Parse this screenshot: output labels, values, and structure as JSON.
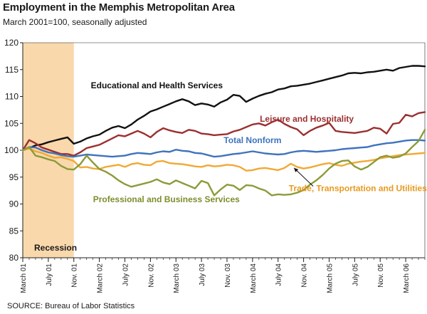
{
  "chart_data": {
    "type": "line",
    "title": "Employment in the Memphis Metropolitan Area",
    "subtitle": "March 2001=100, seasonally adjusted",
    "source": "SOURCE: Bureau of Labor Statistics",
    "ylim": [
      80,
      120
    ],
    "yticks": [
      80,
      85,
      90,
      95,
      100,
      105,
      110,
      115,
      120
    ],
    "x_range_months": [
      0,
      63
    ],
    "xticks": [
      {
        "m": 0,
        "label": "March 01"
      },
      {
        "m": 4,
        "label": "July 01"
      },
      {
        "m": 8,
        "label": "Nov. 01"
      },
      {
        "m": 12,
        "label": "March 02"
      },
      {
        "m": 16,
        "label": "July 02"
      },
      {
        "m": 20,
        "label": "Nov. 02"
      },
      {
        "m": 24,
        "label": "March 03"
      },
      {
        "m": 28,
        "label": "July 03"
      },
      {
        "m": 32,
        "label": "Nov. 03"
      },
      {
        "m": 36,
        "label": "March 04"
      },
      {
        "m": 40,
        "label": "July 04"
      },
      {
        "m": 44,
        "label": "Nov. 04"
      },
      {
        "m": 48,
        "label": "March 05"
      },
      {
        "m": 52,
        "label": "July 05"
      },
      {
        "m": 56,
        "label": "Nov. 05"
      },
      {
        "m": 60,
        "label": "March 06"
      }
    ],
    "recession": {
      "start": 0,
      "end": 8,
      "label": "Recession",
      "color": "#f9d8ac"
    },
    "series": [
      {
        "name": "Educational and Health Services",
        "color": "#111111",
        "values": [
          100,
          100.4,
          100.9,
          101.1,
          101.5,
          101.8,
          102.1,
          102.4,
          101.2,
          101.6,
          102.2,
          102.6,
          102.9,
          103.6,
          104.2,
          104.5,
          104.1,
          104.8,
          105.7,
          106.4,
          107.2,
          107.6,
          108.1,
          108.6,
          109.1,
          109.5,
          109.1,
          108.4,
          108.7,
          108.5,
          108.1,
          108.9,
          109.4,
          110.3,
          110.1,
          109.0,
          109.6,
          110.1,
          110.5,
          110.8,
          111.3,
          111.5,
          111.9,
          112.0,
          112.2,
          112.4,
          112.7,
          113.0,
          113.3,
          113.6,
          113.9,
          114.3,
          114.4,
          114.3,
          114.5,
          114.6,
          114.8,
          115.0,
          114.8,
          115.3,
          115.5,
          115.7,
          115.7,
          115.6
        ]
      },
      {
        "name": "Leisure and Hospitality",
        "color": "#9b2f2f",
        "values": [
          100,
          101.9,
          101.3,
          100.5,
          100.1,
          99.7,
          99.3,
          99.3,
          99.0,
          99.6,
          100.4,
          100.7,
          101.0,
          101.6,
          102.2,
          102.8,
          102.6,
          103.1,
          103.6,
          103.1,
          102.4,
          103.4,
          104.1,
          103.7,
          103.4,
          103.2,
          103.8,
          103.6,
          103.1,
          103.0,
          102.8,
          102.9,
          103.0,
          103.5,
          103.8,
          104.3,
          104.8,
          105.0,
          104.6,
          105.2,
          105.7,
          104.9,
          104.3,
          103.9,
          102.8,
          103.6,
          104.2,
          104.6,
          105.1,
          103.6,
          103.4,
          103.3,
          103.2,
          103.4,
          103.6,
          104.2,
          104.0,
          103.1,
          104.9,
          105.1,
          106.6,
          106.3,
          106.9,
          107.1
        ]
      },
      {
        "name": "Total Nonform",
        "color": "#3e73bd",
        "values": [
          100,
          100.6,
          100.5,
          100.0,
          99.6,
          99.4,
          99.1,
          98.9,
          98.8,
          99.0,
          99.2,
          99.1,
          99.0,
          98.9,
          98.8,
          98.9,
          99.0,
          99.3,
          99.5,
          99.4,
          99.3,
          99.6,
          99.8,
          99.7,
          100.1,
          99.9,
          99.8,
          99.5,
          99.4,
          99.1,
          98.8,
          98.9,
          99.1,
          99.3,
          99.4,
          99.6,
          99.8,
          99.6,
          99.4,
          99.3,
          99.2,
          99.3,
          99.6,
          99.8,
          99.9,
          99.8,
          99.7,
          99.8,
          99.9,
          100.0,
          100.2,
          100.3,
          100.4,
          100.5,
          100.6,
          100.9,
          101.1,
          101.3,
          101.4,
          101.6,
          101.8,
          101.9,
          101.9,
          101.8
        ]
      },
      {
        "name": "Trade, Transportation and Utilities",
        "color": "#f0a935",
        "values": [
          100,
          100.3,
          99.8,
          99.5,
          99.0,
          98.6,
          98.7,
          98.4,
          98.0,
          96.8,
          96.9,
          96.6,
          96.5,
          96.9,
          97.1,
          97.3,
          96.9,
          97.4,
          97.6,
          97.3,
          97.2,
          97.9,
          98.0,
          97.6,
          97.5,
          97.4,
          97.2,
          97.0,
          96.9,
          97.2,
          97.0,
          97.1,
          97.3,
          97.2,
          96.9,
          96.2,
          96.3,
          96.6,
          96.7,
          96.5,
          96.3,
          96.7,
          97.5,
          96.9,
          96.6,
          96.8,
          97.1,
          97.4,
          97.6,
          97.3,
          97.1,
          97.5,
          97.7,
          97.9,
          98.0,
          98.2,
          98.5,
          98.7,
          98.9,
          99.1,
          99.2,
          99.3,
          99.4,
          99.5
        ]
      },
      {
        "name": "Professional and Business Services",
        "color": "#8c9a3a",
        "values": [
          100,
          100.6,
          99.0,
          98.7,
          98.3,
          98.0,
          97.1,
          96.5,
          96.4,
          97.4,
          99.0,
          97.7,
          96.5,
          96.0,
          95.3,
          94.4,
          93.7,
          93.2,
          93.5,
          93.8,
          94.1,
          94.6,
          94.0,
          93.7,
          94.4,
          93.9,
          93.4,
          92.9,
          94.3,
          93.9,
          91.6,
          92.7,
          93.6,
          93.4,
          92.6,
          93.5,
          93.4,
          92.9,
          92.5,
          91.6,
          91.8,
          91.7,
          91.8,
          92.1,
          92.6,
          93.6,
          94.4,
          95.4,
          96.6,
          97.5,
          98.0,
          98.1,
          97.0,
          96.4,
          96.9,
          97.8,
          98.7,
          99.0,
          98.6,
          98.8,
          99.4,
          100.6,
          101.7,
          103.8
        ]
      }
    ],
    "annotations": [
      {
        "text": "Educational and Health Services",
        "x": 21,
        "y": 111.5,
        "color": "#111111"
      },
      {
        "text": "Leisure and Hospitality",
        "x": 44.5,
        "y": 105.3,
        "color": "#9b2f2f"
      },
      {
        "text": "Total Nonform",
        "x": 36,
        "y": 101.3,
        "color": "#3e73bd"
      },
      {
        "text": "Professional and Business Services",
        "x": 22.5,
        "y": 90.3,
        "color": "#7f8d2e"
      },
      {
        "text": "Trade, Transportation and Utilities",
        "x": 52.5,
        "y": 92.4,
        "color": "#e89a1f"
      }
    ],
    "grid": false
  }
}
